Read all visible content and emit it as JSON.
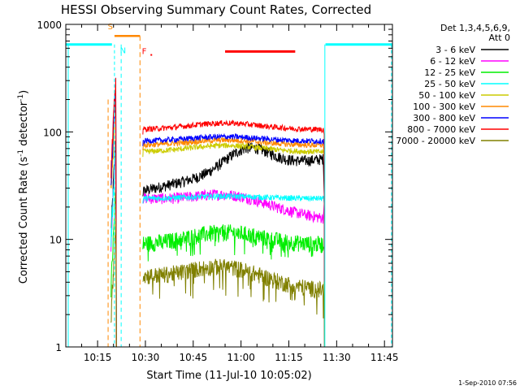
{
  "chart_data": {
    "type": "line",
    "title": "HESSI Observing Summary Count Rates, Corrected",
    "xlabel": "Start Time (11-Jul-10 10:05:02)",
    "ylabel": "Corrected Count Rate (s",
    "ylabel_sup1": "-1",
    "ylabel_mid": " detector",
    "ylabel_sup2": "-1",
    "ylabel_end": ")",
    "xticks": [
      {
        "t": 15,
        "label": "10:15"
      },
      {
        "t": 30,
        "label": "10:30"
      },
      {
        "t": 45,
        "label": "10:45"
      },
      {
        "t": 60,
        "label": "11:00"
      },
      {
        "t": 75,
        "label": "11:15"
      },
      {
        "t": 90,
        "label": "11:30"
      },
      {
        "t": 105,
        "label": "11:45"
      }
    ],
    "xlim": [
      5.03,
      107.5
    ],
    "yscale": "log",
    "ylim": [
      1,
      1000
    ],
    "yticks": [
      {
        "v": 1,
        "label": "1"
      },
      {
        "v": 10,
        "label": "10"
      },
      {
        "v": 100,
        "label": "100"
      },
      {
        "v": 1000,
        "label": "1000"
      }
    ],
    "legend_title_1": "Det 1,3,4,5,6,9,",
    "legend_title_2": "Att 0",
    "legend_position": "right",
    "gap_interval": [
      21,
      29
    ],
    "series": [
      {
        "name": "3 - 6 keV",
        "color": "#000000",
        "y0": 28,
        "bump": 1.6
      },
      {
        "name": "6 - 12 keV",
        "color": "#ff00ff",
        "y0": 24,
        "bump": 1.3
      },
      {
        "name": "12 - 25 keV",
        "color": "#00ee00",
        "y0": 9,
        "bump": 1.3
      },
      {
        "name": "25 - 50 keV",
        "color": "#00ffff",
        "y0": 24,
        "bump": 1.05
      },
      {
        "name": "50 - 100 keV",
        "color": "#cccc00",
        "y0": 65,
        "bump": 1.15
      },
      {
        "name": "100 - 300 keV",
        "color": "#ff8800",
        "y0": 75,
        "bump": 1.12
      },
      {
        "name": "300 - 800 keV",
        "color": "#0000ff",
        "y0": 82,
        "bump": 1.1
      },
      {
        "name": "800 - 7000 keV",
        "color": "#ff0000",
        "y0": 105,
        "bump": 1.15
      },
      {
        "name": "7000 - 20000 keV",
        "color": "#808000",
        "y0": 4.5,
        "bump": 1.4
      }
    ],
    "saa_intervals": [
      [
        5.03,
        19.5
      ],
      [
        86.5,
        107.5
      ]
    ],
    "saa_level": 650,
    "night_intervals": [
      [
        55,
        77
      ]
    ],
    "night_level": 560,
    "markers": {
      "S": "S",
      "N": "N",
      "F": "F"
    },
    "colors": {
      "saa": "#00ffff",
      "night": "#ff0000",
      "s_marker": "#ff8800",
      "flare": "#ff0000"
    }
  },
  "footer": {
    "timestamp": "1-Sep-2010 07:56"
  }
}
